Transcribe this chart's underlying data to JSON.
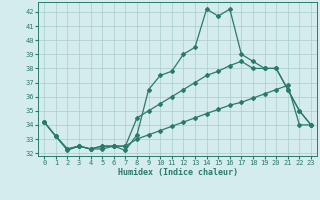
{
  "xlabel": "Humidex (Indice chaleur)",
  "bg_color": "#d4ecec",
  "grid_color": "#aacccc",
  "line_color": "#2a7a6a",
  "xlim": [
    -0.5,
    23.5
  ],
  "ylim": [
    31.8,
    42.7
  ],
  "yticks": [
    32,
    33,
    34,
    35,
    36,
    37,
    38,
    39,
    40,
    41,
    42
  ],
  "xticks": [
    0,
    1,
    2,
    3,
    4,
    5,
    6,
    7,
    8,
    9,
    10,
    11,
    12,
    13,
    14,
    15,
    16,
    17,
    18,
    19,
    20,
    21,
    22,
    23
  ],
  "s1_x": [
    0,
    1,
    2,
    3,
    4,
    5,
    6,
    7,
    8,
    9,
    10,
    11,
    12,
    13,
    14,
    15,
    16,
    17,
    18,
    19,
    20,
    21,
    22,
    23
  ],
  "s1_y": [
    34.2,
    33.2,
    32.2,
    32.5,
    32.3,
    32.3,
    32.5,
    32.2,
    33.3,
    36.5,
    37.5,
    37.8,
    39.0,
    39.5,
    42.2,
    41.7,
    42.2,
    39.0,
    38.5,
    38.0,
    38.0,
    36.5,
    35.0,
    34.0
  ],
  "s2_x": [
    0,
    1,
    2,
    3,
    4,
    5,
    6,
    7,
    8,
    9,
    10,
    11,
    12,
    13,
    14,
    15,
    16,
    17,
    18,
    19,
    20,
    21,
    22,
    23
  ],
  "s2_y": [
    34.2,
    33.2,
    32.3,
    32.5,
    32.3,
    32.5,
    32.5,
    32.5,
    34.5,
    35.0,
    35.5,
    36.0,
    36.5,
    37.0,
    37.5,
    37.8,
    38.2,
    38.5,
    38.0,
    38.0,
    38.0,
    36.5,
    35.0,
    34.0
  ],
  "s3_x": [
    0,
    1,
    2,
    3,
    4,
    5,
    6,
    7,
    8,
    9,
    10,
    11,
    12,
    13,
    14,
    15,
    16,
    17,
    18,
    19,
    20,
    21,
    22,
    23
  ],
  "s3_y": [
    34.2,
    33.2,
    32.3,
    32.5,
    32.3,
    32.5,
    32.5,
    32.5,
    33.0,
    33.3,
    33.6,
    33.9,
    34.2,
    34.5,
    34.8,
    35.1,
    35.4,
    35.6,
    35.9,
    36.2,
    36.5,
    36.8,
    34.0,
    34.0
  ]
}
